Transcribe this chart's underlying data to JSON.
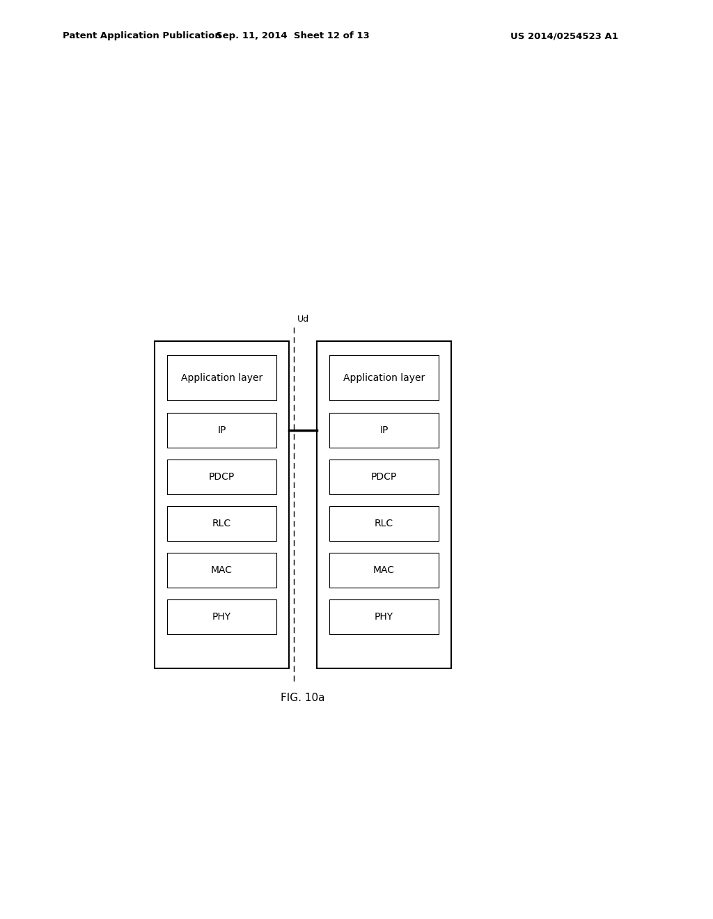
{
  "title_left": "Patent Application Publication",
  "title_mid": "Sep. 11, 2014  Sheet 12 of 13",
  "title_right": "US 2014/0254523 A1",
  "fig_label": "FIG. 10a",
  "ud_label": "Ud",
  "layers": [
    "Application layer",
    "IP",
    "PDCP",
    "RLC",
    "MAC",
    "PHY"
  ],
  "background_color": "#ffffff",
  "box_edge_color": "#000000",
  "text_color": "#000000",
  "header_fontsize": 9.5,
  "layer_fontsize": 10,
  "fig_label_fontsize": 11,
  "ud_fontsize": 9
}
